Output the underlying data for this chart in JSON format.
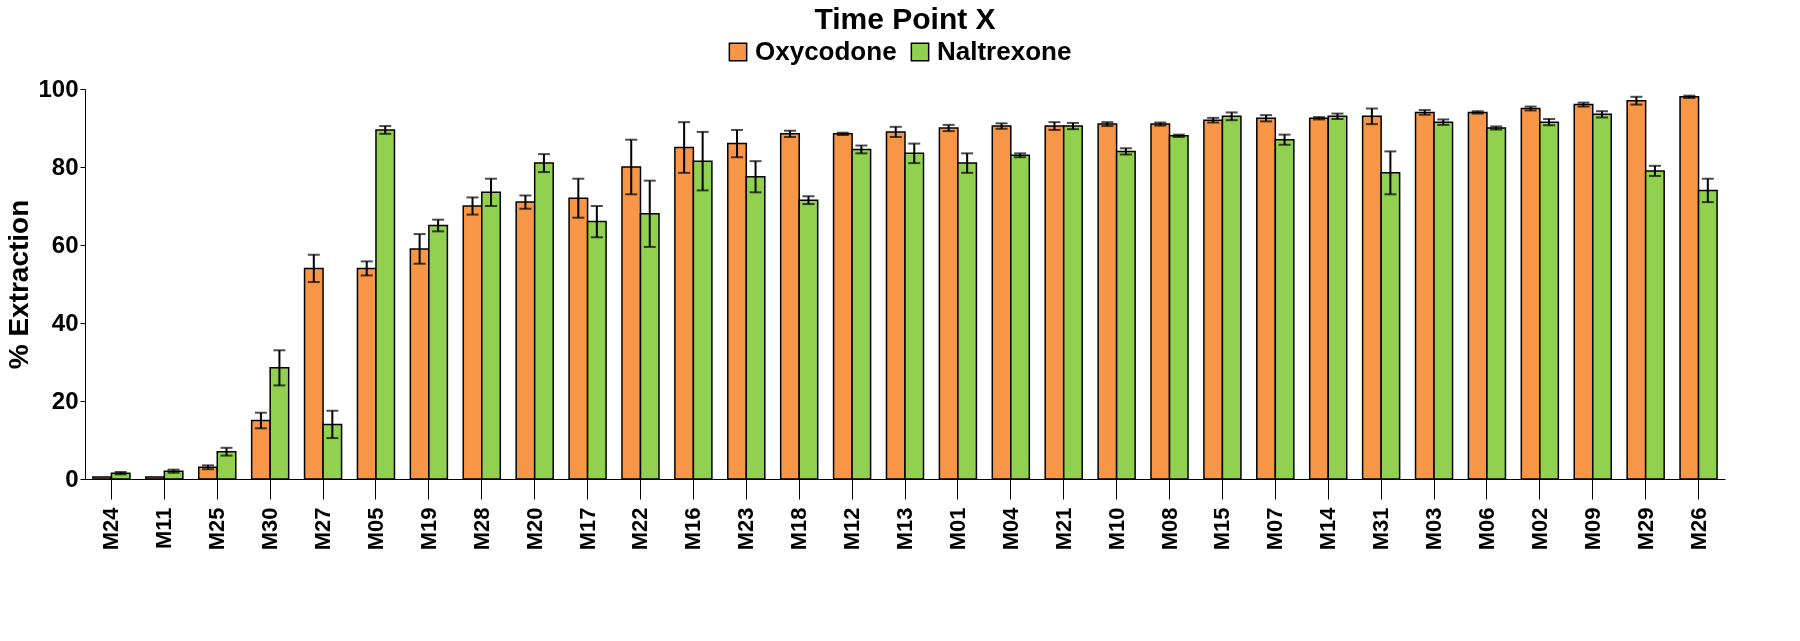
{
  "chart_data": {
    "type": "bar",
    "title": "Time Point X",
    "ylabel": "% Extraction",
    "categories": [
      "M24",
      "M11",
      "M25",
      "M30",
      "M27",
      "M05",
      "M19",
      "M28",
      "M20",
      "M17",
      "M22",
      "M16",
      "M23",
      "M18",
      "M12",
      "M13",
      "M01",
      "M04",
      "M21",
      "M10",
      "M08",
      "M15",
      "M07",
      "M14",
      "M31",
      "M03",
      "M06",
      "M02",
      "M09",
      "M29",
      "M26"
    ],
    "series": [
      {
        "name": "Oxycodone",
        "color": "#f79646",
        "values": [
          0.5,
          0.5,
          3,
          15,
          54,
          54,
          59,
          70,
          71,
          72,
          80,
          85,
          86,
          88.5,
          88.5,
          89,
          90,
          90.5,
          90.5,
          91,
          91,
          92,
          92.5,
          92.5,
          93,
          94,
          94,
          95,
          96,
          97,
          98
        ],
        "errors": [
          null,
          null,
          0.5,
          2,
          3.5,
          1.8,
          3.8,
          2.2,
          1.7,
          5,
          7,
          6.5,
          3.5,
          0.8,
          0.3,
          1.3,
          0.8,
          0.7,
          1,
          0.5,
          0.4,
          0.6,
          0.8,
          0.3,
          2,
          0.6,
          0.3,
          0.5,
          0.5,
          1,
          0.3
        ]
      },
      {
        "name": "Naltrexone",
        "color": "#92d050",
        "values": [
          1.5,
          2,
          7,
          28.5,
          14,
          89.5,
          65,
          73.5,
          81,
          66,
          68,
          81.5,
          77.5,
          71.5,
          84.5,
          83.5,
          81,
          83,
          90.5,
          84,
          88,
          93,
          87,
          93,
          78.5,
          91.5,
          90,
          91.5,
          93.5,
          79,
          74
        ],
        "errors": [
          0.3,
          0.4,
          1,
          4.5,
          3.5,
          1,
          1.5,
          3.5,
          2.3,
          4,
          8.5,
          7.5,
          4,
          1,
          1,
          2.5,
          2.5,
          0.5,
          0.8,
          0.8,
          0.3,
          1,
          1.3,
          0.7,
          5.5,
          0.7,
          0.4,
          0.8,
          0.8,
          1.3,
          3
        ]
      }
    ],
    "ylim": [
      0,
      100
    ],
    "yticks": [
      0,
      20,
      40,
      60,
      80,
      100
    ],
    "grid": false,
    "legend": "top"
  }
}
